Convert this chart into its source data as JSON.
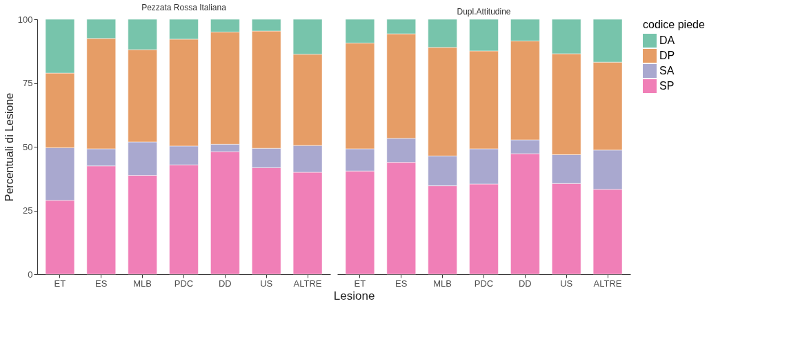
{
  "chart_data": [
    {
      "type": "bar",
      "stacked": true,
      "title": "Pezzata Rossa Italiana",
      "xlabel": "Lesione",
      "ylabel": "Percentuali di Lesione",
      "categories": [
        "ET",
        "ES",
        "MLB",
        "PDC",
        "DD",
        "US",
        "ALTRE"
      ],
      "ylim": [
        0,
        100
      ],
      "yticks": [
        0,
        25,
        50,
        75,
        100
      ],
      "grid": false,
      "legend": "right",
      "series": [
        {
          "name": "SP",
          "color": "#f07fb7",
          "values": [
            29.0,
            42.5,
            38.8,
            42.9,
            48.1,
            41.8,
            40.0
          ]
        },
        {
          "name": "SA",
          "color": "#a9a8cf",
          "values": [
            20.6,
            6.7,
            13.1,
            7.4,
            2.9,
            7.6,
            10.5
          ]
        },
        {
          "name": "DP",
          "color": "#e69d66",
          "values": [
            29.3,
            43.3,
            36.2,
            41.9,
            44.0,
            46.0,
            35.8
          ]
        },
        {
          "name": "DA",
          "color": "#77c4ab",
          "values": [
            21.1,
            7.5,
            11.9,
            7.8,
            5.0,
            4.6,
            13.7
          ]
        }
      ]
    },
    {
      "type": "bar",
      "stacked": true,
      "title": "Dupl.Attitudine",
      "legend_title": "codice piede",
      "categories": [
        "ET",
        "ES",
        "MLB",
        "PDC",
        "DD",
        "US",
        "ALTRE"
      ],
      "ylim": [
        0,
        100
      ],
      "yticks": [
        0,
        25,
        50,
        75,
        100
      ],
      "grid": false,
      "legend": "right",
      "tick_labels": "x",
      "series": [
        {
          "name": "SP",
          "color": "#f07fb7",
          "values": [
            40.5,
            43.9,
            34.7,
            35.4,
            47.3,
            35.6,
            33.3
          ]
        },
        {
          "name": "SA",
          "color": "#a9a8cf",
          "values": [
            8.7,
            9.4,
            11.7,
            13.8,
            5.4,
            11.3,
            15.4
          ]
        },
        {
          "name": "DP",
          "color": "#e69d66",
          "values": [
            41.5,
            41.0,
            42.6,
            38.4,
            38.8,
            39.6,
            34.5
          ]
        },
        {
          "name": "DA",
          "color": "#77c4ab",
          "values": [
            9.3,
            5.7,
            11.0,
            12.4,
            8.5,
            13.5,
            16.8
          ]
        }
      ]
    }
  ]
}
